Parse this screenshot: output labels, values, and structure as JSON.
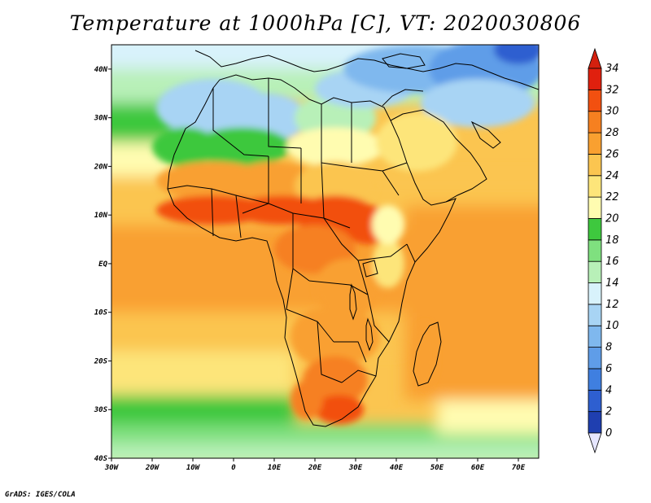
{
  "title": "Temperature at 1000hPa [C], VT: 2020030806",
  "credit": "GrADS: IGES/COLA",
  "map": {
    "lon_range": [
      -30,
      75
    ],
    "lat_range": [
      -40,
      45
    ],
    "x_ticks": [
      "30W",
      "20W",
      "10W",
      "0",
      "10E",
      "20E",
      "30E",
      "40E",
      "50E",
      "60E",
      "70E"
    ],
    "x_tick_values": [
      -30,
      -20,
      -10,
      0,
      10,
      20,
      30,
      40,
      50,
      60,
      70
    ],
    "y_ticks": [
      "40N",
      "30N",
      "20N",
      "10N",
      "EQ",
      "10S",
      "20S",
      "30S",
      "40S"
    ],
    "y_tick_values": [
      40,
      30,
      20,
      10,
      0,
      -10,
      -20,
      -30,
      -40
    ]
  },
  "colorbar": {
    "levels": [
      "0",
      "2",
      "4",
      "6",
      "8",
      "10",
      "12",
      "14",
      "16",
      "18",
      "20",
      "22",
      "24",
      "26",
      "28",
      "30",
      "32",
      "34"
    ],
    "colors": [
      "#1a1a80",
      "#1f3fb0",
      "#2e5fd0",
      "#3f7fe0",
      "#5f9de8",
      "#7fb8ee",
      "#a8d4f4",
      "#d8f2fb",
      "#b8f0b8",
      "#7fe07f",
      "#3ec83e",
      "#fffcb0",
      "#fde57a",
      "#fbc550",
      "#f9a030",
      "#f68020",
      "#f25010",
      "#e0200e"
    ],
    "below_color": "#e6e6ff",
    "above_color": "#d4200e"
  }
}
